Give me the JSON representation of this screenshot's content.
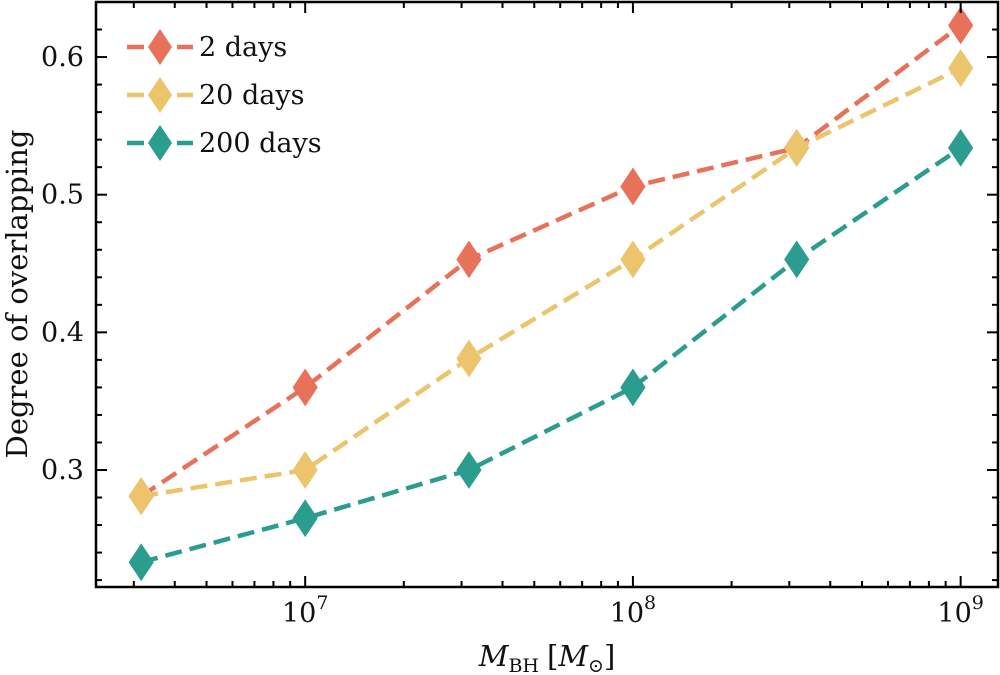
{
  "chart_data": {
    "type": "line",
    "title": "",
    "xlabel": "M_BH [M_⊙]",
    "xlabel_parts": {
      "main": "M",
      "main_sub": "BH",
      "bracket_open": "[",
      "unit": "M",
      "unit_sub": "⊙",
      "bracket_close": "]"
    },
    "ylabel": "Degree of overlapping",
    "xscale": "log",
    "xlim": [
      2300000.0,
      1300000000.0
    ],
    "ylim": [
      0.215,
      0.64
    ],
    "x_ticks": [
      {
        "value": 10000000.0,
        "base": "10",
        "exp": "7"
      },
      {
        "value": 100000000.0,
        "base": "10",
        "exp": "8"
      },
      {
        "value": 1000000000.0,
        "base": "10",
        "exp": "9"
      }
    ],
    "y_ticks": [
      {
        "value": 0.3,
        "label": "0.3"
      },
      {
        "value": 0.4,
        "label": "0.4"
      },
      {
        "value": 0.5,
        "label": "0.5"
      },
      {
        "value": 0.6,
        "label": "0.6"
      }
    ],
    "y_minor_step": 0.02,
    "grid": false,
    "legend_position": "top-left",
    "x": [
      3160000.0,
      10000000.0,
      31600000.0,
      100000000.0,
      316000000.0,
      1000000000.0
    ],
    "series": [
      {
        "name": "2 days",
        "color": "#e8715a",
        "marker": "diamond",
        "linestyle": "dashed",
        "values": [
          0.281,
          0.36,
          0.453,
          0.506,
          0.534,
          0.623
        ]
      },
      {
        "name": "20 days",
        "color": "#ebc46c",
        "marker": "diamond",
        "linestyle": "dashed",
        "values": [
          0.281,
          0.3,
          0.381,
          0.453,
          0.534,
          0.592
        ]
      },
      {
        "name": "200 days",
        "color": "#2a9d8e",
        "marker": "diamond",
        "linestyle": "dashed",
        "values": [
          0.233,
          0.265,
          0.3,
          0.36,
          0.453,
          0.534
        ]
      }
    ]
  }
}
